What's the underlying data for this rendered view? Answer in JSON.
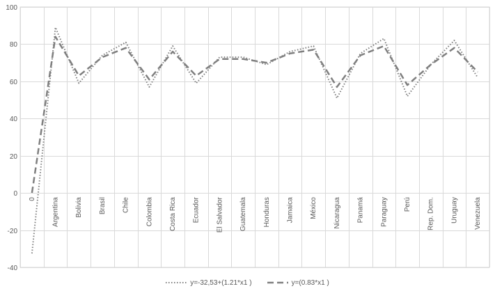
{
  "chart_data": {
    "type": "line",
    "title": "",
    "xlabel": "",
    "ylabel": "",
    "ylim": [
      -40,
      100
    ],
    "yticks": [
      -40,
      -20,
      0,
      20,
      40,
      60,
      80,
      100
    ],
    "categories": [
      "0",
      "Argentina",
      "Bolivia",
      "Brasil",
      "Chile",
      "Colombia",
      "Costa Rica",
      "Ecuador",
      "El Salvador",
      "Guatemala",
      "Honduras",
      "Jamaica",
      "México",
      "Nicaragua",
      "Panamá",
      "Paraguay",
      "Perú",
      "Rep. Dom.",
      "Uruguay",
      "Venezuela"
    ],
    "series": [
      {
        "name": "y=-32,53+(1.21*x1 )",
        "style": "dotted",
        "color": "#7f7f7f",
        "values": [
          -32.5,
          89,
          59,
          74,
          81,
          57,
          79,
          59,
          73,
          73,
          69,
          76,
          79,
          51,
          75,
          83,
          52,
          69,
          82,
          62
        ]
      },
      {
        "name": "y=(0.83*x1 )",
        "style": "dashed",
        "color": "#7f7f7f",
        "values": [
          0,
          84,
          63,
          73,
          78,
          61,
          76,
          63,
          72,
          72,
          70,
          75,
          77,
          57,
          74,
          79,
          58,
          69,
          78,
          65
        ]
      }
    ],
    "grid": true,
    "legend_position": "bottom"
  }
}
